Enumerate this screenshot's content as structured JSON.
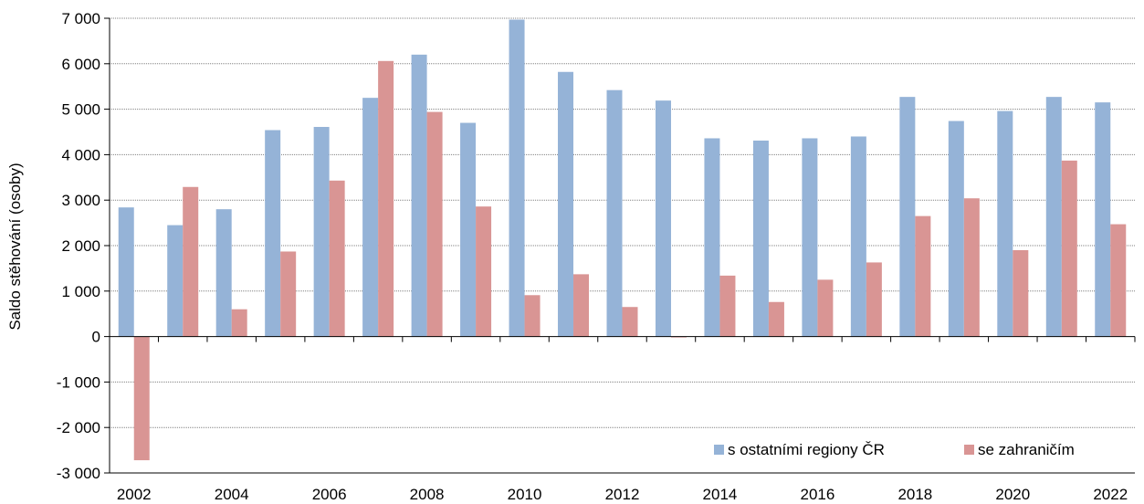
{
  "chart_data": {
    "type": "bar",
    "ylabel": "Saldo stěhování (osoby)",
    "ylim": [
      -3000,
      7000
    ],
    "yticks": [
      -3000,
      -2000,
      -1000,
      0,
      1000,
      2000,
      3000,
      4000,
      5000,
      6000,
      7000
    ],
    "ytick_labels": [
      "-3 000",
      "-2 000",
      "-1 000",
      "0",
      "1 000",
      "2 000",
      "3 000",
      "4 000",
      "5 000",
      "6 000",
      "7 000"
    ],
    "categories": [
      "2002",
      "2003",
      "2004",
      "2005",
      "2006",
      "2007",
      "2008",
      "2009",
      "2010",
      "2011",
      "2012",
      "2013",
      "2014",
      "2015",
      "2016",
      "2017",
      "2018",
      "2019",
      "2020",
      "2021",
      "2022"
    ],
    "xtick_labels": [
      "2002",
      "",
      "2004",
      "",
      "2006",
      "",
      "2008",
      "",
      "2010",
      "",
      "2012",
      "",
      "2014",
      "",
      "2016",
      "",
      "2018",
      "",
      "2020",
      "",
      "2022"
    ],
    "grid": true,
    "legend_position": "bottom-right",
    "series": [
      {
        "name": "s ostatními regiony ČR",
        "color": "#95b3d7",
        "values": [
          2840,
          2450,
          2800,
          4540,
          4610,
          5250,
          6200,
          4700,
          6970,
          5820,
          5420,
          5190,
          4360,
          4310,
          4360,
          4400,
          5270,
          4740,
          4960,
          5270,
          5150
        ]
      },
      {
        "name": "se zahraničím",
        "color": "#d99594",
        "values": [
          -2720,
          3290,
          600,
          1870,
          3430,
          6060,
          4940,
          2860,
          910,
          1370,
          650,
          -20,
          1340,
          760,
          1250,
          1630,
          2650,
          3040,
          1900,
          3870,
          2470
        ]
      }
    ]
  }
}
